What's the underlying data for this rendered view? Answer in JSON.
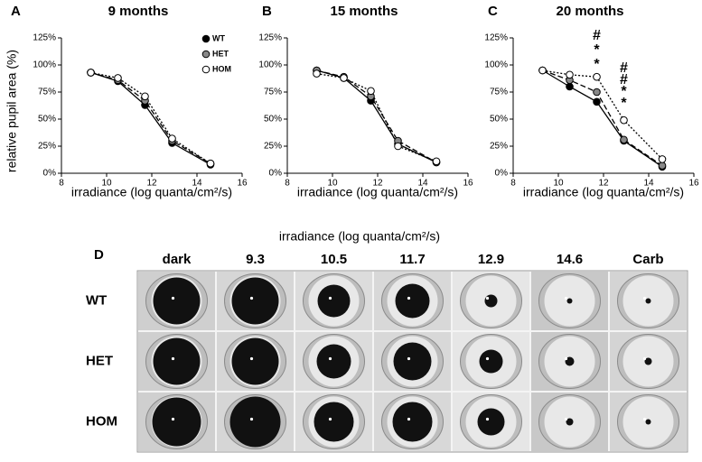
{
  "chart_data": [
    {
      "type": "line",
      "panel": "A",
      "title": "9 months",
      "ylabel": "relative pupil area (%)",
      "xlabel": "irradiance (log quanta/cm²/s)",
      "x": [
        9.3,
        10.5,
        11.7,
        12.9,
        14.6
      ],
      "xlim": [
        8,
        16
      ],
      "xticks": [
        8,
        10,
        12,
        14,
        16
      ],
      "ylim": [
        0,
        125
      ],
      "yticks": [
        {
          "value": 0,
          "label": "0%"
        },
        {
          "value": 25,
          "label": "25%"
        },
        {
          "value": 50,
          "label": "50%"
        },
        {
          "value": 75,
          "label": "75%"
        },
        {
          "value": 100,
          "label": "100%"
        },
        {
          "value": 125,
          "label": "125%"
        }
      ],
      "legend": "upper right",
      "series": [
        {
          "name": "WT",
          "color": "#000000",
          "line_style": "solid",
          "values": [
            93,
            85,
            63,
            28,
            8
          ]
        },
        {
          "name": "HET",
          "color": "#888888",
          "line_style": "dashed",
          "values": [
            93,
            86,
            67,
            30,
            9
          ]
        },
        {
          "name": "HOM",
          "color": "#ffffff",
          "line_style": "dotted",
          "values": [
            93,
            88,
            71,
            32,
            9
          ]
        }
      ]
    },
    {
      "type": "line",
      "panel": "B",
      "title": "15 months",
      "xlabel": "irradiance (log quanta/cm²/s)",
      "x": [
        9.3,
        10.5,
        11.7,
        12.9,
        14.6
      ],
      "xlim": [
        8,
        16
      ],
      "xticks": [
        8,
        10,
        12,
        14,
        16
      ],
      "ylim": [
        0,
        125
      ],
      "yticks": [
        {
          "value": 0,
          "label": "0%"
        },
        {
          "value": 25,
          "label": "25%"
        },
        {
          "value": 50,
          "label": "50%"
        },
        {
          "value": 75,
          "label": "75%"
        },
        {
          "value": 100,
          "label": "100%"
        },
        {
          "value": 125,
          "label": "125%"
        }
      ],
      "series": [
        {
          "name": "WT",
          "color": "#000000",
          "line_style": "solid",
          "values": [
            95,
            88,
            67,
            27,
            10
          ]
        },
        {
          "name": "HET",
          "color": "#888888",
          "line_style": "dashed",
          "values": [
            95,
            89,
            71,
            30,
            10
          ]
        },
        {
          "name": "HOM",
          "color": "#ffffff",
          "line_style": "dotted",
          "values": [
            92,
            88,
            76,
            25,
            11
          ]
        }
      ]
    },
    {
      "type": "line",
      "panel": "C",
      "title": "20 months",
      "xlabel": "irradiance (log quanta/cm²/s)",
      "x": [
        9.3,
        10.5,
        11.7,
        12.9,
        14.6
      ],
      "xlim": [
        8,
        16
      ],
      "xticks": [
        8,
        10,
        12,
        14,
        16
      ],
      "ylim": [
        0,
        125
      ],
      "yticks": [
        {
          "value": 0,
          "label": "0%"
        },
        {
          "value": 25,
          "label": "25%"
        },
        {
          "value": 50,
          "label": "50%"
        },
        {
          "value": 75,
          "label": "75%"
        },
        {
          "value": 100,
          "label": "100%"
        },
        {
          "value": 125,
          "label": "125%"
        }
      ],
      "series": [
        {
          "name": "WT",
          "color": "#000000",
          "line_style": "solid",
          "values": [
            95,
            80,
            66,
            30,
            6
          ]
        },
        {
          "name": "HET",
          "color": "#888888",
          "line_style": "dashed",
          "values": [
            95,
            86,
            75,
            31,
            7
          ]
        },
        {
          "name": "HOM",
          "color": "#ffffff",
          "line_style": "dotted",
          "values": [
            95,
            91,
            89,
            49,
            13
          ]
        }
      ],
      "annotations": [
        {
          "x": 11.7,
          "labels": [
            "#",
            "*",
            "*"
          ]
        },
        {
          "x": 12.9,
          "labels": [
            "#",
            "#",
            "*",
            "*"
          ]
        }
      ]
    }
  ],
  "panel_d": {
    "label": "D",
    "title": "irradiance (log quanta/cm²/s)",
    "columns": [
      "dark",
      "9.3",
      "10.5",
      "11.7",
      "12.9",
      "14.6",
      "Carb"
    ],
    "rows": [
      "WT",
      "HET",
      "HOM"
    ]
  }
}
